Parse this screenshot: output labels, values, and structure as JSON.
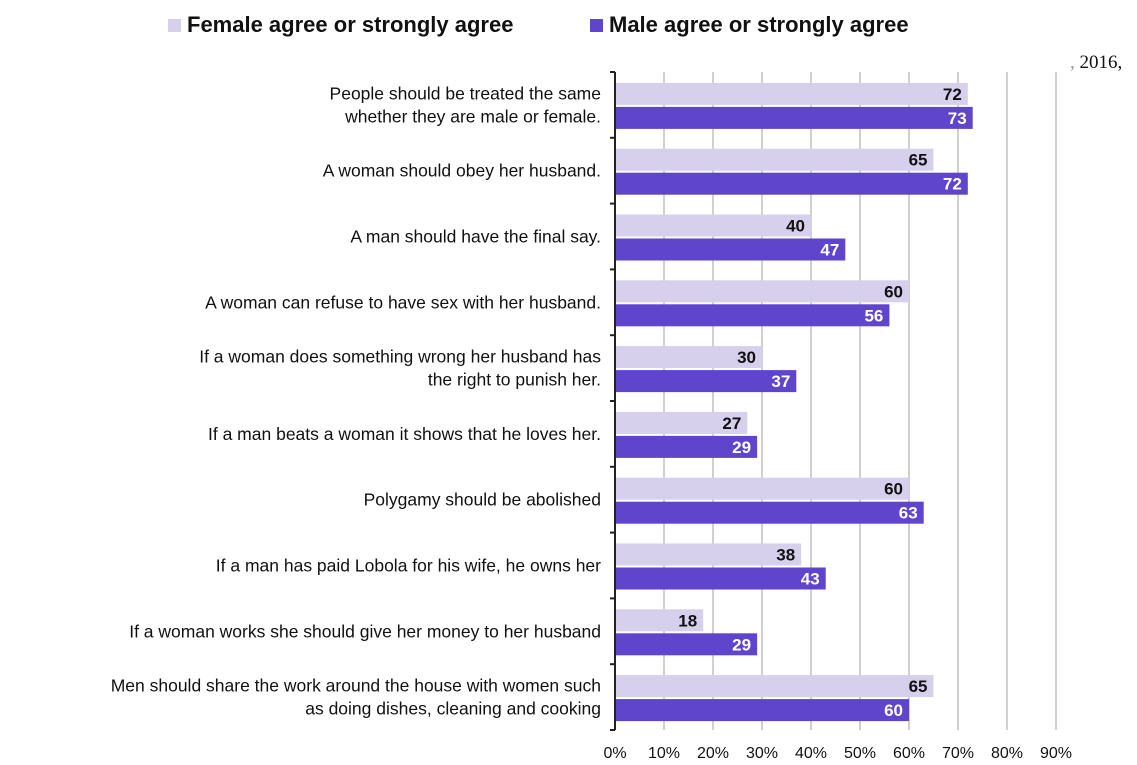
{
  "legend": {
    "female_label": "Female agree or strongly agree",
    "male_label": "Male agree or strongly agree"
  },
  "stray_text": "2016,",
  "colors": {
    "female": "#D6D0EC",
    "male": "#5E45CC",
    "grid": "#D0D0D0",
    "axis": "#222222",
    "label_dark": "#111111",
    "label_light": "#FFFFFF"
  },
  "chart_data": {
    "type": "bar",
    "orientation": "horizontal",
    "categories": [
      [
        "People should be treated the same",
        "whether they are male or female."
      ],
      [
        "A woman should obey her husband."
      ],
      [
        "A man should have the final say."
      ],
      [
        "A woman can refuse to have sex with her husband."
      ],
      [
        "If a woman does something wrong her husband has",
        "the right to punish her."
      ],
      [
        "If a man beats a woman it shows that he loves her."
      ],
      [
        "Polygamy should be abolished"
      ],
      [
        "If a man has paid Lobola for his wife, he owns her"
      ],
      [
        "If a woman works she should give her money to her husband"
      ],
      [
        "Men should share the work around the house with women such",
        "as doing dishes, cleaning and cooking"
      ]
    ],
    "series": [
      {
        "name": "Female agree or strongly agree",
        "values": [
          72,
          65,
          40,
          60,
          30,
          27,
          60,
          38,
          18,
          65
        ]
      },
      {
        "name": "Male agree or strongly agree",
        "values": [
          73,
          72,
          47,
          56,
          37,
          29,
          63,
          43,
          29,
          60
        ]
      }
    ],
    "xlim": [
      0,
      90
    ],
    "xticks": [
      "0%",
      "10%",
      "20%",
      "30%",
      "40%",
      "50%",
      "60%",
      "70%",
      "80%",
      "90%"
    ],
    "grid": true,
    "legend_position": "top-left"
  }
}
